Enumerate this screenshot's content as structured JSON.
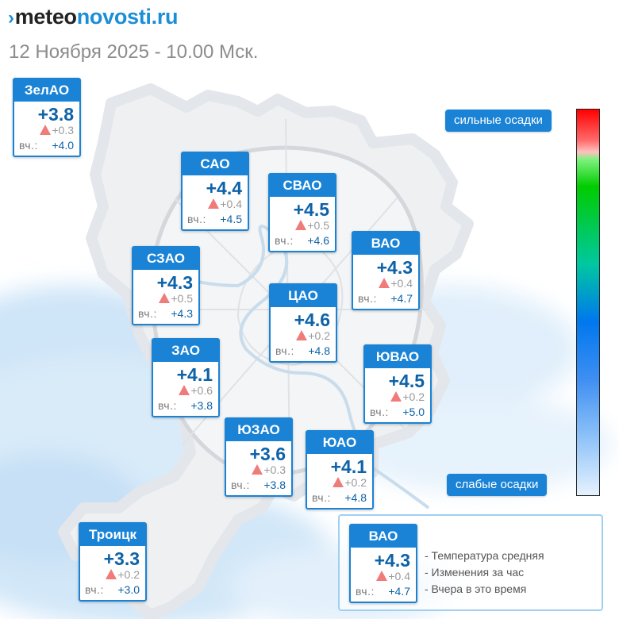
{
  "header": {
    "logo_part1": "meteo",
    "logo_part2": "novosti.ru",
    "date": "12 Ноября 2025 - 10.00 Мск."
  },
  "precip_legend": {
    "top_label": "сильные осадки",
    "bottom_label": "слабые осадки"
  },
  "districts": {
    "zelao": {
      "name": "ЗелАО",
      "temp": "+3.8",
      "change": "+0.3",
      "yesterday_label": "вч.:",
      "yesterday": "+4.0"
    },
    "sao": {
      "name": "САО",
      "temp": "+4.4",
      "change": "+0.4",
      "yesterday_label": "вч.:",
      "yesterday": "+4.5"
    },
    "svao": {
      "name": "СВАО",
      "temp": "+4.5",
      "change": "+0.5",
      "yesterday_label": "вч.:",
      "yesterday": "+4.6"
    },
    "vao": {
      "name": "ВАО",
      "temp": "+4.3",
      "change": "+0.4",
      "yesterday_label": "вч.:",
      "yesterday": "+4.7"
    },
    "szao": {
      "name": "СЗАО",
      "temp": "+4.3",
      "change": "+0.5",
      "yesterday_label": "вч.:",
      "yesterday": "+4.3"
    },
    "cao": {
      "name": "ЦАО",
      "temp": "+4.6",
      "change": "+0.2",
      "yesterday_label": "вч.:",
      "yesterday": "+4.8"
    },
    "zao": {
      "name": "ЗАО",
      "temp": "+4.1",
      "change": "+0.6",
      "yesterday_label": "вч.:",
      "yesterday": "+3.8"
    },
    "yuvao": {
      "name": "ЮВАО",
      "temp": "+4.5",
      "change": "+0.2",
      "yesterday_label": "вч.:",
      "yesterday": "+5.0"
    },
    "yuzao": {
      "name": "ЮЗАО",
      "temp": "+3.6",
      "change": "+0.3",
      "yesterday_label": "вч.:",
      "yesterday": "+3.8"
    },
    "yuao": {
      "name": "ЮАО",
      "temp": "+4.1",
      "change": "+0.2",
      "yesterday_label": "вч.:",
      "yesterday": "+4.8"
    },
    "troitsk": {
      "name": "Троицк",
      "temp": "+3.3",
      "change": "+0.2",
      "yesterday_label": "вч.:",
      "yesterday": "+3.0"
    }
  },
  "legend": {
    "sample": {
      "name": "ВАО",
      "temp": "+4.3",
      "change": "+0.4",
      "yesterday_label": "вч.:",
      "yesterday": "+4.7"
    },
    "items": [
      "- Температура средняя",
      "- Изменения за час",
      "- Вчера в это время"
    ]
  },
  "colors": {
    "accent_blue": "#1a83d6",
    "temp_blue": "#0d62a8",
    "change_triangle": "#f07b7b",
    "precip_light": "#d4e9f9"
  },
  "icons": {
    "logo_mark": "arrow-chevron-icon",
    "change": "triangle-up-icon"
  }
}
